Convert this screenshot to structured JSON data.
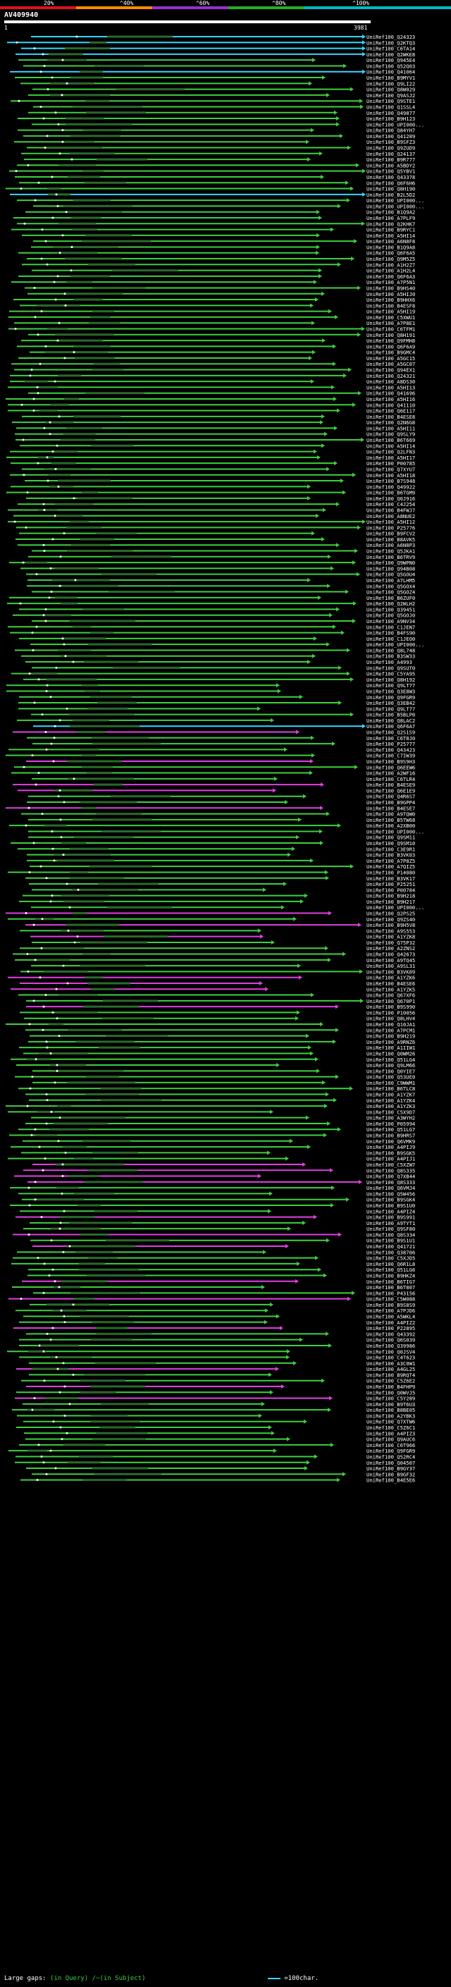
{
  "scale": {
    "labels": [
      "20%",
      "^40%",
      "^60%",
      "^80%",
      "^100%"
    ],
    "colors": [
      "#e0101a",
      "#ff8a00",
      "#9b2fd1",
      "#22b01e",
      "#00b7c8"
    ]
  },
  "query": {
    "title": "AV409940",
    "start": "1",
    "end": "3981"
  },
  "hits": [
    {
      "id": "UniRef100_Q24323",
      "color": "#39d5ff"
    },
    {
      "id": "UniRef100_Q2KTQ3",
      "color": "#39d5ff"
    },
    {
      "id": "UniRef100_C6TA14",
      "color": "#39d5ff"
    },
    {
      "id": "UniRef100_Q2WKE8",
      "color": "#39d5ff"
    },
    {
      "id": "UniRef100_Q945E4",
      "color": "#3fcf3f"
    },
    {
      "id": "UniRef100_Q52Q03",
      "color": "#3fcf3f"
    },
    {
      "id": "UniRef100_Q41064",
      "color": "#39d5ff"
    },
    {
      "id": "UniRef100_B9MYV1",
      "color": "#3fcf3f"
    },
    {
      "id": "UniRef100_Q9LI22",
      "color": "#3fcf3f"
    },
    {
      "id": "UniRef100_Q8W029",
      "color": "#3fcf3f"
    },
    {
      "id": "UniRef100_Q9ASJ2",
      "color": "#3fcf3f"
    },
    {
      "id": "UniRef100_Q9STE1",
      "color": "#3fcf3f"
    },
    {
      "id": "UniRef100_Q1SSL4",
      "color": "#3fcf3f"
    },
    {
      "id": "UniRef100_Q49877",
      "color": "#3fcf3f"
    },
    {
      "id": "UniRef100_B9H123",
      "color": "#3fcf3f"
    },
    {
      "id": "UniRef100_UPI000...",
      "color": "#3fcf3f"
    },
    {
      "id": "UniRef100_Q84YH7",
      "color": "#3fcf3f"
    },
    {
      "id": "UniRef100_Q41289",
      "color": "#3fcf3f"
    },
    {
      "id": "UniRef100_B9SFZ3",
      "color": "#3fcf3f"
    },
    {
      "id": "UniRef100_Q9ZUD9",
      "color": "#3fcf3f"
    },
    {
      "id": "UniRef100_Q24137",
      "color": "#3fcf3f"
    },
    {
      "id": "UniRef100_B9R777",
      "color": "#3fcf3f"
    },
    {
      "id": "UniRef100_A5BDY2",
      "color": "#3fcf3f"
    },
    {
      "id": "UniRef100_Q5YBV1",
      "color": "#3fcf3f"
    },
    {
      "id": "UniRef100_Q43378",
      "color": "#3fcf3f"
    },
    {
      "id": "UniRef100_Q6F6H6",
      "color": "#3fcf3f"
    },
    {
      "id": "UniRef100_Q8H190",
      "color": "#3fcf3f"
    },
    {
      "id": "UniRef100_B2L5D2",
      "color": "#39d5ff"
    },
    {
      "id": "UniRef100_UPI000...",
      "color": "#3fcf3f"
    },
    {
      "id": "UniRef100_UPI000...",
      "color": "#3fcf3f"
    },
    {
      "id": "UniRef100_B1Q9A2",
      "color": "#3fcf3f"
    },
    {
      "id": "UniRef100_A7PLF9",
      "color": "#3fcf3f"
    },
    {
      "id": "UniRef100_Q2KHK7",
      "color": "#3fcf3f"
    },
    {
      "id": "UniRef100_B9RYC1",
      "color": "#3fcf3f"
    },
    {
      "id": "UniRef100_A5HI14",
      "color": "#3fcf3f"
    },
    {
      "id": "UniRef100_A6N8F8",
      "color": "#3fcf3f"
    },
    {
      "id": "UniRef100_B1Q9A8",
      "color": "#3fcf3f"
    },
    {
      "id": "UniRef100_Q6F6A5",
      "color": "#3fcf3f"
    },
    {
      "id": "UniRef100_Q9M5Z5",
      "color": "#3fcf3f"
    },
    {
      "id": "UniRef100_A1H2Z7",
      "color": "#3fcf3f"
    },
    {
      "id": "UniRef100_A1H2L4",
      "color": "#3fcf3f"
    },
    {
      "id": "UniRef100_Q6F6A3",
      "color": "#3fcf3f"
    },
    {
      "id": "UniRef100_A7P5N1",
      "color": "#3fcf3f"
    },
    {
      "id": "UniRef100_B9HS40",
      "color": "#3fcf3f"
    },
    {
      "id": "UniRef100_A5HIJ0",
      "color": "#3fcf3f"
    },
    {
      "id": "UniRef100_B9HHX6",
      "color": "#3fcf3f"
    },
    {
      "id": "UniRef100_B4ESF8",
      "color": "#3fcf3f"
    },
    {
      "id": "UniRef100_A5HI19",
      "color": "#3fcf3f"
    },
    {
      "id": "UniRef100_C5XWU1",
      "color": "#3fcf3f"
    },
    {
      "id": "UniRef100_A7P8E1",
      "color": "#3fcf3f"
    },
    {
      "id": "UniRef100_C6TFM1",
      "color": "#3fcf3f"
    },
    {
      "id": "UniRef100_Q8H191",
      "color": "#3fcf3f"
    },
    {
      "id": "UniRef100_Q9FMH8",
      "color": "#3fcf3f"
    },
    {
      "id": "UniRef100_Q6F6A9",
      "color": "#3fcf3f"
    },
    {
      "id": "UniRef100_B9GMC4",
      "color": "#3fcf3f"
    },
    {
      "id": "UniRef100_A5GC15",
      "color": "#3fcf3f"
    },
    {
      "id": "UniRef100_A5GC07",
      "color": "#3fcf3f"
    },
    {
      "id": "UniRef100_Q94EX1",
      "color": "#3fcf3f"
    },
    {
      "id": "UniRef100_Q24321",
      "color": "#3fcf3f"
    },
    {
      "id": "UniRef100_A8DS30",
      "color": "#3fcf3f"
    },
    {
      "id": "UniRef100_A5HI13",
      "color": "#3fcf3f"
    },
    {
      "id": "UniRef100_Q41696",
      "color": "#3fcf3f"
    },
    {
      "id": "UniRef100_A5HI16",
      "color": "#3fcf3f"
    },
    {
      "id": "UniRef100_Q41110",
      "color": "#3fcf3f"
    },
    {
      "id": "UniRef100_Q6E117",
      "color": "#3fcf3f"
    },
    {
      "id": "UniRef100_B4ESE8",
      "color": "#3fcf3f"
    },
    {
      "id": "UniRef100_Q2N6G8",
      "color": "#3fcf3f"
    },
    {
      "id": "UniRef100_A5HI11",
      "color": "#3fcf3f"
    },
    {
      "id": "UniRef100_Q9SLY9",
      "color": "#3fcf3f"
    },
    {
      "id": "UniRef100_B6T669",
      "color": "#3fcf3f"
    },
    {
      "id": "UniRef100_A5HI14",
      "color": "#3fcf3f"
    },
    {
      "id": "UniRef100_Q2LFN3",
      "color": "#3fcf3f"
    },
    {
      "id": "UniRef100_A5HI17",
      "color": "#3fcf3f"
    },
    {
      "id": "UniRef100_P00785",
      "color": "#3fcf3f"
    },
    {
      "id": "UniRef100_Q7XYU7",
      "color": "#3fcf3f"
    },
    {
      "id": "UniRef100_A5HI18",
      "color": "#3fcf3f"
    },
    {
      "id": "UniRef100_B7S948",
      "color": "#3fcf3f"
    },
    {
      "id": "UniRef100_Q49922",
      "color": "#3fcf3f"
    },
    {
      "id": "UniRef100_B6TGM9",
      "color": "#3fcf3f"
    },
    {
      "id": "UniRef100_Q0J916",
      "color": "#3fcf3f"
    },
    {
      "id": "UniRef100_C4J254",
      "color": "#3fcf3f"
    },
    {
      "id": "UniRef100_B4FWJ7",
      "color": "#3fcf3f"
    },
    {
      "id": "UniRef100_A8NUE2",
      "color": "#3fcf3f"
    },
    {
      "id": "UniRef100_A5HI12",
      "color": "#3fcf3f"
    },
    {
      "id": "UniRef100_P25776",
      "color": "#3fcf3f"
    },
    {
      "id": "UniRef100_B9FCV2",
      "color": "#3fcf3f"
    },
    {
      "id": "UniRef100_B8AVK5",
      "color": "#3fcf3f"
    },
    {
      "id": "UniRef100_A6N8P3",
      "color": "#3fcf3f"
    },
    {
      "id": "UniRef100_Q5JKA1",
      "color": "#3fcf3f"
    },
    {
      "id": "UniRef100_B6TRV9",
      "color": "#3fcf3f"
    },
    {
      "id": "UniRef100_Q9WPN0",
      "color": "#3fcf3f"
    },
    {
      "id": "UniRef100_Q94B08",
      "color": "#3fcf3f"
    },
    {
      "id": "UniRef100_Q5GOU4",
      "color": "#3fcf3f"
    },
    {
      "id": "UniRef100_A7LHM5",
      "color": "#3fcf3f"
    },
    {
      "id": "UniRef100_Q5GOX4",
      "color": "#3fcf3f"
    },
    {
      "id": "UniRef100_Q5GOZ4",
      "color": "#3fcf3f"
    },
    {
      "id": "UniRef100_B6ZUF0",
      "color": "#3fcf3f"
    },
    {
      "id": "UniRef100_Q2WLH2",
      "color": "#3fcf3f"
    },
    {
      "id": "UniRef100_Q39451",
      "color": "#3fcf3f"
    },
    {
      "id": "UniRef100_Q5GOJ0",
      "color": "#3fcf3f"
    },
    {
      "id": "UniRef100_A9NV34",
      "color": "#3fcf3f"
    },
    {
      "id": "UniRef100_C1JEN7",
      "color": "#3fcf3f"
    },
    {
      "id": "UniRef100_B4FS90",
      "color": "#3fcf3f"
    },
    {
      "id": "UniRef100_C1JEO0",
      "color": "#3fcf3f"
    },
    {
      "id": "UniRef100_UPI000...",
      "color": "#3fcf3f"
    },
    {
      "id": "UniRef100_Q8L748",
      "color": "#3fcf3f"
    },
    {
      "id": "UniRef100_B3SW33",
      "color": "#3fcf3f"
    },
    {
      "id": "UniRef100_A4993",
      "color": "#3fcf3f"
    },
    {
      "id": "UniRef100_Q9SUT0",
      "color": "#3fcf3f"
    },
    {
      "id": "UniRef100_C5YA95",
      "color": "#3fcf3f"
    },
    {
      "id": "UniRef100_Q8H192",
      "color": "#3fcf3f"
    },
    {
      "id": "UniRef100_Q9LT77",
      "color": "#3fcf3f"
    },
    {
      "id": "UniRef100_Q3E8W3",
      "color": "#3fcf3f"
    },
    {
      "id": "UniRef100_Q9FGR9",
      "color": "#3fcf3f"
    },
    {
      "id": "UniRef100_Q3EB42",
      "color": "#3fcf3f"
    },
    {
      "id": "UniRef100_Q9LT77",
      "color": "#3fcf3f"
    },
    {
      "id": "UniRef100_B5BLP0",
      "color": "#3fcf3f"
    },
    {
      "id": "UniRef100_Q8LAC2",
      "color": "#3fcf3f"
    },
    {
      "id": "UniRef100_Q6F6A7",
      "color": "#39d5ff"
    },
    {
      "id": "UniRef100_Q2S1S9",
      "color": "#e040e0"
    },
    {
      "id": "UniRef100_C6T8J0",
      "color": "#3fcf3f"
    },
    {
      "id": "UniRef100_P25777",
      "color": "#3fcf3f"
    },
    {
      "id": "UniRef100_Q43423",
      "color": "#3fcf3f"
    },
    {
      "id": "UniRef100_C7IW39",
      "color": "#3fcf3f"
    },
    {
      "id": "UniRef100_B9S9H3",
      "color": "#e040e0"
    },
    {
      "id": "UniRef100_Q6EEW6",
      "color": "#3fcf3f"
    },
    {
      "id": "UniRef100_A2WF16",
      "color": "#3fcf3f"
    },
    {
      "id": "UniRef100_C6TLR4",
      "color": "#3fcf3f"
    },
    {
      "id": "UniRef100_B4ESE9",
      "color": "#e040e0"
    },
    {
      "id": "UniRef100_Q6E1E9",
      "color": "#e040e0"
    },
    {
      "id": "UniRef100_Q4R6S7",
      "color": "#3fcf3f"
    },
    {
      "id": "UniRef100_B9GPP4",
      "color": "#3fcf3f"
    },
    {
      "id": "UniRef100_B4ESE7",
      "color": "#e040e0"
    },
    {
      "id": "UniRef100_A9TQW0",
      "color": "#3fcf3f"
    },
    {
      "id": "UniRef100_B5TW68",
      "color": "#3fcf3f"
    },
    {
      "id": "UniRef100_A2XB00",
      "color": "#3fcf3f"
    },
    {
      "id": "UniRef100_UPI000...",
      "color": "#3fcf3f"
    },
    {
      "id": "UniRef100_Q9SM11",
      "color": "#3fcf3f"
    },
    {
      "id": "UniRef100_Q9SM10",
      "color": "#3fcf3f"
    },
    {
      "id": "UniRef100_C3E9R1",
      "color": "#3fcf3f"
    },
    {
      "id": "UniRef100_B3VK03",
      "color": "#3fcf3f"
    },
    {
      "id": "UniRef100_A7P8Z5",
      "color": "#3fcf3f"
    },
    {
      "id": "UniRef100_A7QIZ5",
      "color": "#3fcf3f"
    },
    {
      "id": "UniRef100_P14080",
      "color": "#3fcf3f"
    },
    {
      "id": "UniRef100_B3VK17",
      "color": "#3fcf3f"
    },
    {
      "id": "UniRef100_P25251",
      "color": "#3fcf3f"
    },
    {
      "id": "UniRef100_P00784",
      "color": "#3fcf3f"
    },
    {
      "id": "UniRef100_B9H218",
      "color": "#3fcf3f"
    },
    {
      "id": "UniRef100_B9H217",
      "color": "#3fcf3f"
    },
    {
      "id": "UniRef100_UPI000...",
      "color": "#3fcf3f"
    },
    {
      "id": "UniRef100_Q2PS25",
      "color": "#e040e0"
    },
    {
      "id": "UniRef100_Q9ZS40",
      "color": "#3fcf3f"
    },
    {
      "id": "UniRef100_B9H5V8",
      "color": "#e040e0"
    },
    {
      "id": "UniRef100_A9S553",
      "color": "#3fcf3f"
    },
    {
      "id": "UniRef100_A1YZK8",
      "color": "#e040e0"
    },
    {
      "id": "UniRef100_Q75P32",
      "color": "#3fcf3f"
    },
    {
      "id": "UniRef100_A2ZNS2",
      "color": "#3fcf3f"
    },
    {
      "id": "UniRef100_Q42673",
      "color": "#3fcf3f"
    },
    {
      "id": "UniRef100_A9TQ45",
      "color": "#3fcf3f"
    },
    {
      "id": "UniRef100_A9SL31",
      "color": "#3fcf3f"
    },
    {
      "id": "UniRef100_B3VK09",
      "color": "#3fcf3f"
    },
    {
      "id": "UniRef100_A1YZK6",
      "color": "#e040e0"
    },
    {
      "id": "UniRef100_B4ESE6",
      "color": "#e040e0"
    },
    {
      "id": "UniRef100_A1YZK5",
      "color": "#e040e0"
    },
    {
      "id": "UniRef100_Q67XF6",
      "color": "#3fcf3f"
    },
    {
      "id": "UniRef100_Q670P1",
      "color": "#3fcf3f"
    },
    {
      "id": "UniRef100_B9S990",
      "color": "#e040e0"
    },
    {
      "id": "UniRef100_P10056",
      "color": "#3fcf3f"
    },
    {
      "id": "UniRef100_Q8LHV4",
      "color": "#3fcf3f"
    },
    {
      "id": "UniRef100_Q10JA1",
      "color": "#3fcf3f"
    },
    {
      "id": "UniRef100_A7PCM1",
      "color": "#3fcf3f"
    },
    {
      "id": "UniRef100_B9H219",
      "color": "#3fcf3f"
    },
    {
      "id": "UniRef100_A9RNZ6",
      "color": "#3fcf3f"
    },
    {
      "id": "UniRef100_A1IIW1",
      "color": "#3fcf3f"
    },
    {
      "id": "UniRef100_Q0WM26",
      "color": "#3fcf3f"
    },
    {
      "id": "UniRef100_Q51LG4",
      "color": "#3fcf3f"
    },
    {
      "id": "UniRef100_Q9LM66",
      "color": "#3fcf3f"
    },
    {
      "id": "UniRef100_Q0YIE7",
      "color": "#3fcf3f"
    },
    {
      "id": "UniRef100_Q53UE0",
      "color": "#3fcf3f"
    },
    {
      "id": "UniRef100_C9WWM1",
      "color": "#3fcf3f"
    },
    {
      "id": "UniRef100_B6TLC8",
      "color": "#3fcf3f"
    },
    {
      "id": "UniRef100_A1YZK7",
      "color": "#3fcf3f"
    },
    {
      "id": "UniRef100_A1YZK4",
      "color": "#3fcf3f"
    },
    {
      "id": "UniRef100_A1YZK3",
      "color": "#3fcf3f"
    },
    {
      "id": "UniRef100_C5X9D7",
      "color": "#3fcf3f"
    },
    {
      "id": "UniRef100_A3WYH2",
      "color": "#3fcf3f"
    },
    {
      "id": "UniRef100_P05994",
      "color": "#3fcf3f"
    },
    {
      "id": "UniRef100_Q51LG7",
      "color": "#3fcf3f"
    },
    {
      "id": "UniRef100_B9HRS7",
      "color": "#3fcf3f"
    },
    {
      "id": "UniRef100_Q6VMK9",
      "color": "#3fcf3f"
    },
    {
      "id": "UniRef100_A4PIJ9",
      "color": "#3fcf3f"
    },
    {
      "id": "UniRef100_B9SGK5",
      "color": "#3fcf3f"
    },
    {
      "id": "UniRef100_A4PIJ1",
      "color": "#3fcf3f"
    },
    {
      "id": "UniRef100_C5XZW7",
      "color": "#e040e0"
    },
    {
      "id": "UniRef100_Q8S335",
      "color": "#e040e0"
    },
    {
      "id": "UniRef100_Q7XB44",
      "color": "#e040e0"
    },
    {
      "id": "UniRef100_Q8S333",
      "color": "#e040e0"
    },
    {
      "id": "UniRef100_Q6VMJ4",
      "color": "#3fcf3f"
    },
    {
      "id": "UniRef100_Q5W456",
      "color": "#3fcf3f"
    },
    {
      "id": "UniRef100_B9SGK4",
      "color": "#3fcf3f"
    },
    {
      "id": "UniRef100_B9S1U0",
      "color": "#3fcf3f"
    },
    {
      "id": "UniRef100_A4PIZ4",
      "color": "#3fcf3f"
    },
    {
      "id": "UniRef100_B9S991",
      "color": "#e040e0"
    },
    {
      "id": "UniRef100_A9TYT1",
      "color": "#3fcf3f"
    },
    {
      "id": "UniRef100_Q9SF80",
      "color": "#3fcf3f"
    },
    {
      "id": "UniRef100_Q8S334",
      "color": "#e040e0"
    },
    {
      "id": "UniRef100_B9S1U1",
      "color": "#3fcf3f"
    },
    {
      "id": "UniRef100_Q41721",
      "color": "#e040e0"
    },
    {
      "id": "UniRef100_Q38706",
      "color": "#3fcf3f"
    },
    {
      "id": "UniRef100_C5XJD5",
      "color": "#3fcf3f"
    },
    {
      "id": "UniRef100_Q6R1L8",
      "color": "#3fcf3f"
    },
    {
      "id": "UniRef100_Q51LG6",
      "color": "#3fcf3f"
    },
    {
      "id": "UniRef100_B9HKZ4",
      "color": "#3fcf3f"
    },
    {
      "id": "UniRef100_B6TIG7",
      "color": "#e040e0"
    },
    {
      "id": "UniRef100_B6T807",
      "color": "#3fcf3f"
    },
    {
      "id": "UniRef100_P43156",
      "color": "#3fcf3f"
    },
    {
      "id": "UniRef100_C5W088",
      "color": "#e040e0"
    },
    {
      "id": "UniRef100_B9S8S9",
      "color": "#3fcf3f"
    },
    {
      "id": "UniRef100_A7PJD6",
      "color": "#3fcf3f"
    },
    {
      "id": "UniRef100_A5WKL4",
      "color": "#3fcf3f"
    },
    {
      "id": "UniRef100_A4PIZ2",
      "color": "#3fcf3f"
    },
    {
      "id": "UniRef100_P22895",
      "color": "#e040e0"
    },
    {
      "id": "UniRef100_Q43392",
      "color": "#3fcf3f"
    },
    {
      "id": "UniRef100_Q6S039",
      "color": "#3fcf3f"
    },
    {
      "id": "UniRef100_Q39986",
      "color": "#3fcf3f"
    },
    {
      "id": "UniRef100_Q0JSV4",
      "color": "#3fcf3f"
    },
    {
      "id": "UniRef100_C4T623",
      "color": "#3fcf3f"
    },
    {
      "id": "UniRef100_A3C0W1",
      "color": "#3fcf3f"
    },
    {
      "id": "UniRef100_A4GL25",
      "color": "#e040e0"
    },
    {
      "id": "UniRef100_B9RQT4",
      "color": "#3fcf3f"
    },
    {
      "id": "UniRef100_C5Z6E2",
      "color": "#3fcf3f"
    },
    {
      "id": "UniRef100_B4FHP9",
      "color": "#e040e0"
    },
    {
      "id": "UniRef100_Q0WVJ5",
      "color": "#3fcf3f"
    },
    {
      "id": "UniRef100_C5Y289",
      "color": "#e040e0"
    },
    {
      "id": "UniRef100_B9T6U3",
      "color": "#3fcf3f"
    },
    {
      "id": "UniRef100_B8BE05",
      "color": "#3fcf3f"
    },
    {
      "id": "UniRef100_A2YBK3",
      "color": "#3fcf3f"
    },
    {
      "id": "UniRef100_Q7XTW6",
      "color": "#3fcf3f"
    },
    {
      "id": "UniRef100_C5Z6C1",
      "color": "#3fcf3f"
    },
    {
      "id": "UniRef100_A4PIZ3",
      "color": "#3fcf3f"
    },
    {
      "id": "UniRef100_Q9AUC6",
      "color": "#3fcf3f"
    },
    {
      "id": "UniRef100_C6T966",
      "color": "#3fcf3f"
    },
    {
      "id": "UniRef100_Q9FGR9",
      "color": "#3fcf3f"
    },
    {
      "id": "UniRef100_Q52RC4",
      "color": "#3fcf3f"
    },
    {
      "id": "UniRef100_Q04507",
      "color": "#3fcf3f"
    },
    {
      "id": "UniRef100_B9GY37",
      "color": "#3fcf3f"
    },
    {
      "id": "UniRef100_B9GF32",
      "color": "#3fcf3f"
    },
    {
      "id": "UniRef100_B4E5E6",
      "color": "#3fcf3f"
    }
  ],
  "legend": {
    "text": "Large gaps:",
    "query_gap": "(in Query)",
    "subject_gap": "/~(in Subject)",
    "scale": "=100char."
  }
}
